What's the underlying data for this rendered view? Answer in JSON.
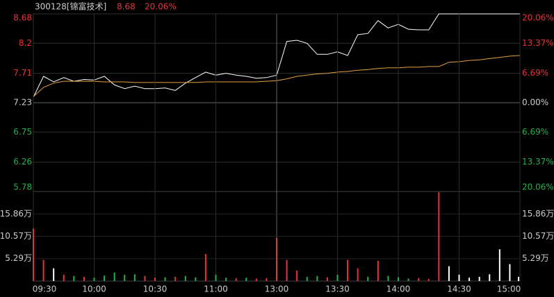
{
  "chart_data": [
    {
      "type": "line",
      "title": "300128[锦富技术]",
      "price_label": "8.68",
      "change_label": "20.06%",
      "xlim": [
        0,
        240
      ],
      "ylim": [
        5.78,
        8.68
      ],
      "yticks": [
        5.78,
        6.26,
        6.75,
        7.23,
        7.71,
        8.2,
        {
          "value": 8.68,
          "label": "8.68"
        }
      ],
      "y2lim": [
        -20.06,
        20.06
      ],
      "y2ticks": [
        {
          "value": -20.06,
          "label": "20.06%"
        },
        {
          "value": -13.37,
          "label": "13.37%"
        },
        {
          "value": -6.69,
          "label": "6.69%"
        },
        {
          "value": 0,
          "label": "0.00%"
        },
        {
          "value": 6.69,
          "label": "6.69%"
        },
        {
          "value": 13.37,
          "label": "13.37%"
        },
        {
          "value": 20.06,
          "label": "20.06%"
        }
      ],
      "up_color": "#e8333a",
      "down_color": "#22b14c",
      "grid": true,
      "x": [
        0,
        5,
        10,
        15,
        20,
        25,
        30,
        35,
        40,
        45,
        50,
        55,
        60,
        65,
        70,
        75,
        80,
        85,
        90,
        95,
        100,
        105,
        110,
        115,
        120,
        125,
        130,
        135,
        140,
        145,
        150,
        155,
        160,
        165,
        170,
        175,
        180,
        185,
        190,
        195,
        200,
        205,
        210,
        215,
        220,
        225,
        230,
        235,
        240
      ],
      "series": [
        {
          "color": "#ffffff",
          "values": [
            7.32,
            7.66,
            7.57,
            7.64,
            7.58,
            7.61,
            7.6,
            7.66,
            7.52,
            7.46,
            7.5,
            7.46,
            7.46,
            7.47,
            7.43,
            7.55,
            7.64,
            7.73,
            7.68,
            7.71,
            7.68,
            7.66,
            7.63,
            7.64,
            7.68,
            8.23,
            8.25,
            8.2,
            8.02,
            8.02,
            8.06,
            8.0,
            8.34,
            8.36,
            8.57,
            8.45,
            8.51,
            8.43,
            8.42,
            8.42,
            8.68,
            8.68,
            8.68,
            8.68,
            8.68,
            8.68,
            8.68,
            8.68,
            8.68
          ]
        },
        {
          "color": "#e6a23c",
          "values": [
            7.33,
            7.48,
            7.55,
            7.58,
            7.58,
            7.58,
            7.58,
            7.57,
            7.57,
            7.57,
            7.56,
            7.56,
            7.56,
            7.56,
            7.56,
            7.56,
            7.56,
            7.57,
            7.57,
            7.57,
            7.57,
            7.57,
            7.57,
            7.58,
            7.59,
            7.62,
            7.66,
            7.68,
            7.7,
            7.71,
            7.73,
            7.74,
            7.76,
            7.77,
            7.79,
            7.8,
            7.8,
            7.81,
            7.81,
            7.82,
            7.82,
            7.89,
            7.9,
            7.92,
            7.93,
            7.95,
            7.97,
            7.99,
            8.0
          ]
        }
      ]
    },
    {
      "type": "bar",
      "xlim": [
        0,
        240
      ],
      "xticks": [
        {
          "value": 0,
          "label": "09:30"
        },
        {
          "value": 30,
          "label": "10:00"
        },
        {
          "value": 60,
          "label": "10:30"
        },
        {
          "value": 90,
          "label": "11:00"
        },
        {
          "value": 120,
          "label": "13:00"
        },
        {
          "value": 150,
          "label": "13:30"
        },
        {
          "value": 180,
          "label": "14:00"
        },
        {
          "value": 210,
          "label": "14:30"
        },
        {
          "value": 240,
          "label": "15:00"
        }
      ],
      "ylim": [
        0,
        21.15
      ],
      "yticks": [
        {
          "value": 5.29,
          "label": "5.29万"
        },
        {
          "value": 10.57,
          "label": "10.57万"
        },
        {
          "value": 15.86,
          "label": "15.86万"
        }
      ],
      "x": [
        0,
        5,
        10,
        15,
        20,
        25,
        30,
        35,
        40,
        45,
        50,
        55,
        60,
        65,
        70,
        75,
        80,
        85,
        90,
        95,
        100,
        105,
        110,
        115,
        120,
        125,
        130,
        135,
        140,
        145,
        150,
        155,
        160,
        165,
        170,
        175,
        180,
        185,
        190,
        195,
        200,
        205,
        210,
        215,
        220,
        225,
        230,
        235,
        240
      ],
      "values": [
        12.4,
        5.0,
        3.0,
        1.5,
        1.2,
        1.0,
        0.8,
        1.3,
        2.0,
        1.5,
        1.6,
        1.2,
        0.8,
        0.9,
        1.0,
        1.2,
        0.9,
        6.4,
        1.5,
        0.8,
        0.7,
        0.8,
        0.6,
        0.7,
        10.2,
        5.0,
        2.5,
        1.0,
        1.2,
        0.9,
        1.5,
        5.0,
        3.0,
        1.0,
        4.8,
        1.2,
        0.9,
        0.6,
        0.7,
        0.5,
        21.0,
        3.5,
        1.5,
        0.8,
        1.0,
        1.6,
        7.5,
        4.0,
        1.0
      ],
      "bar_colors": [
        "#e8333a",
        "#e8333a",
        "#ffffff",
        "#e8333a",
        "#22b14c",
        "#e8333a",
        "#22b14c",
        "#22b14c",
        "#22b14c",
        "#22b14c",
        "#22b14c",
        "#e8333a",
        "#e8333a",
        "#22b14c",
        "#e8333a",
        "#22b14c",
        "#22b14c",
        "#e8333a",
        "#22b14c",
        "#22b14c",
        "#e8333a",
        "#22b14c",
        "#e8333a",
        "#e8333a",
        "#e8333a",
        "#e8333a",
        "#e8333a",
        "#22b14c",
        "#22b14c",
        "#e8333a",
        "#22b14c",
        "#e8333a",
        "#e8333a",
        "#22b14c",
        "#e8333a",
        "#22b14c",
        "#22b14c",
        "#22b14c",
        "#e8333a",
        "#e8333a",
        "#e8333a",
        "#ffffff",
        "#ffffff",
        "#ffffff",
        "#ffffff",
        "#ffffff",
        "#ffffff",
        "#ffffff",
        "#ffffff"
      ]
    }
  ]
}
